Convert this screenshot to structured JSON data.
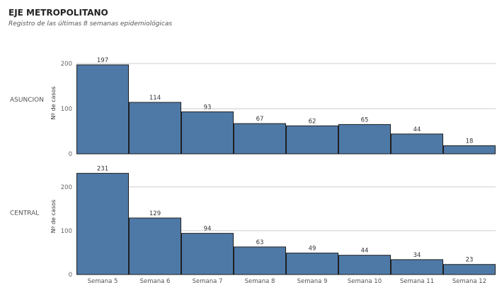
{
  "header": {
    "title": "EJE METROPOLITANO",
    "subtitle": "Registro de las últimas 8 semanas epidemiológicas"
  },
  "colors": {
    "bar": "#4E79A7",
    "bar_stroke": "#1f1f1f",
    "grid": "#cccccc"
  },
  "chart_data": [
    {
      "type": "bar",
      "row_label": "ASUNCION",
      "ylabel": "Nº de casos",
      "ylim": [
        0,
        200
      ],
      "yticks": [
        0,
        100,
        200
      ],
      "categories": [
        "Semana 5",
        "Semana 6",
        "Semana 7",
        "Semana 8",
        "Semana 9",
        "Semana 10",
        "Semana 11",
        "Semana 12"
      ],
      "values": [
        197,
        114,
        93,
        67,
        62,
        65,
        44,
        18
      ],
      "grid": true
    },
    {
      "type": "bar",
      "row_label": "CENTRAL",
      "ylabel": "Nº de casos",
      "ylim": [
        0,
        240
      ],
      "yticks": [
        0,
        100,
        200
      ],
      "categories": [
        "Semana 5",
        "Semana 6",
        "Semana 7",
        "Semana 8",
        "Semana 9",
        "Semana 10",
        "Semana 11",
        "Semana 12"
      ],
      "values": [
        231,
        129,
        94,
        63,
        49,
        44,
        34,
        23
      ],
      "grid": true
    }
  ]
}
